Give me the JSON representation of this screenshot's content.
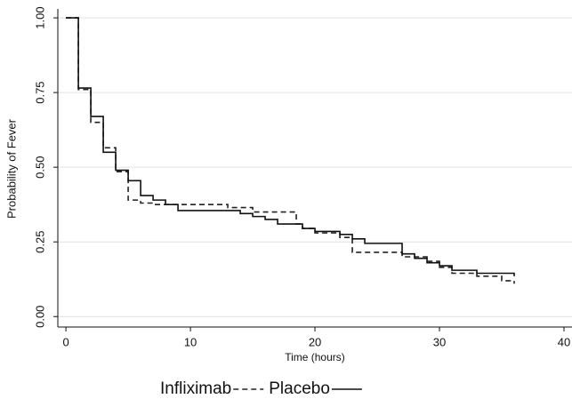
{
  "chart_data": {
    "type": "step",
    "x_label": "Time (hours)",
    "y_label": "Probability of Fever",
    "xlim": [
      -0.65,
      40
    ],
    "ylim": [
      -0.035,
      1.03
    ],
    "xticks": [
      0,
      10,
      20,
      30,
      40
    ],
    "yticks": [
      {
        "value": 0,
        "label": "0.00"
      },
      {
        "value": 0.25,
        "label": "0.25"
      },
      {
        "value": 0.5,
        "label": "0.50"
      },
      {
        "value": 0.75,
        "label": "0.75"
      },
      {
        "value": 1,
        "label": "1.00"
      }
    ],
    "grid": true,
    "series": [
      {
        "name": "Infliximab",
        "color": "#222222",
        "line_style": "dashed",
        "x": [
          0,
          1,
          2,
          3,
          4,
          5,
          6,
          7,
          13,
          15,
          18.5,
          19,
          20,
          22,
          23,
          27,
          29,
          30,
          31,
          33,
          35,
          36
        ],
        "values": [
          1.0,
          0.76,
          0.65,
          0.565,
          0.485,
          0.39,
          0.38,
          0.375,
          0.365,
          0.35,
          0.31,
          0.295,
          0.28,
          0.265,
          0.215,
          0.2,
          0.185,
          0.165,
          0.145,
          0.135,
          0.12,
          0.11
        ]
      },
      {
        "name": "Placebo",
        "color": "#111111",
        "line_style": "solid",
        "x": [
          0,
          1,
          2,
          3,
          4,
          5,
          6,
          7,
          8,
          9,
          14,
          15,
          16,
          17,
          19,
          20,
          22,
          23,
          24,
          27,
          28,
          29,
          30,
          31,
          33,
          36
        ],
        "values": [
          1.0,
          0.765,
          0.67,
          0.55,
          0.49,
          0.455,
          0.405,
          0.39,
          0.375,
          0.355,
          0.345,
          0.335,
          0.325,
          0.31,
          0.295,
          0.285,
          0.275,
          0.26,
          0.245,
          0.21,
          0.195,
          0.18,
          0.17,
          0.155,
          0.145,
          0.135
        ]
      }
    ]
  }
}
